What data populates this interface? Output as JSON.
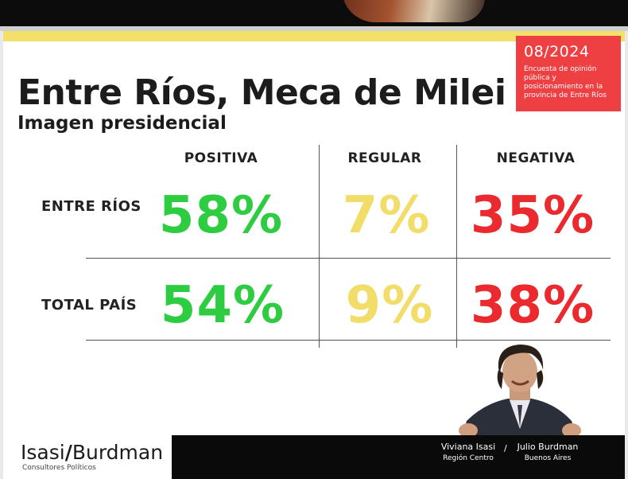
{
  "header": {
    "title": "Entre Ríos, Meca de Milei",
    "subtitle": "Imagen presidencial",
    "date": "08/2024",
    "description": "Encuesta de opinión pública y posicionamiento en la provincia de Entre Ríos"
  },
  "chart_data": {
    "type": "table",
    "categories": [
      "POSITIVA",
      "REGULAR",
      "NEGATIVA"
    ],
    "rows": [
      {
        "label": "ENTRE RÍOS",
        "values": [
          "58%",
          "7%",
          "35%"
        ]
      },
      {
        "label": "TOTAL PAÍS",
        "values": [
          "54%",
          "9%",
          "38%"
        ]
      }
    ],
    "colors": {
      "positiva": "#2ecc40",
      "regular": "#f2dd6b",
      "negativa": "#ea2a2e"
    }
  },
  "footer": {
    "logo_left": "Isasi",
    "logo_slash": "/",
    "logo_right": "Burdman",
    "logo_sub": "Consultores Políticos",
    "author1_name": "Viviana Isasi",
    "author1_place": "Región Centro",
    "separator": "/",
    "author2_name": "Julio Burdman",
    "author2_place": "Buenos Aires"
  },
  "colors": {
    "accent_yellow": "#f3e06a",
    "accent_red": "#ee3f43"
  }
}
